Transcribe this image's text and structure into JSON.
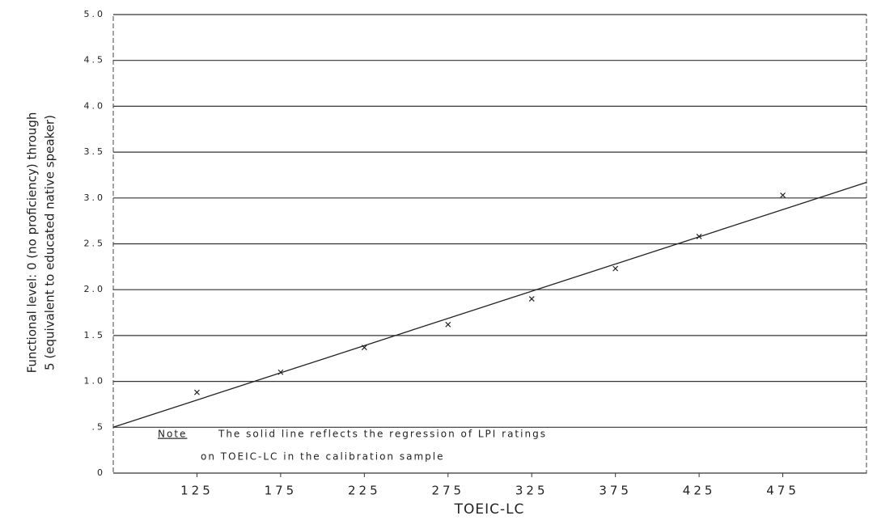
{
  "chart_data": {
    "type": "scatter",
    "ylabel": [
      "Functional level: 0 (no proficiency) through",
      "5 (equivalent to educated native speaker)"
    ],
    "xlabel": "TOEIC-LC",
    "note": [
      "Note",
      "The solid line reflects the regression of LPI ratings",
      "on TOEIC-LC in the calibration sample"
    ],
    "xlim": [
      75,
      525
    ],
    "ylim": [
      0,
      5
    ],
    "xticks": [
      125,
      175,
      225,
      275,
      325,
      375,
      425,
      475
    ],
    "yticks": [
      0,
      {
        "value": 0.5,
        "label": ".5"
      },
      {
        "value": 1,
        "label": "1.0"
      },
      1.5,
      {
        "value": 2,
        "label": "2.0"
      },
      2.5,
      {
        "value": 3,
        "label": "3.0"
      },
      3.5,
      {
        "value": 4,
        "label": "4.0"
      },
      4.5,
      {
        "value": 5,
        "label": "5.0"
      }
    ],
    "grid": true,
    "points": {
      "color": "#222",
      "x": [
        125,
        175,
        225,
        275,
        325,
        375,
        425,
        475
      ],
      "values": [
        0.88,
        1.1,
        1.37,
        1.62,
        1.9,
        2.23,
        2.58,
        3.03
      ]
    },
    "regression_line": {
      "color": "#222",
      "x": [
        75,
        525
      ],
      "values": [
        0.5,
        3.17
      ]
    }
  }
}
